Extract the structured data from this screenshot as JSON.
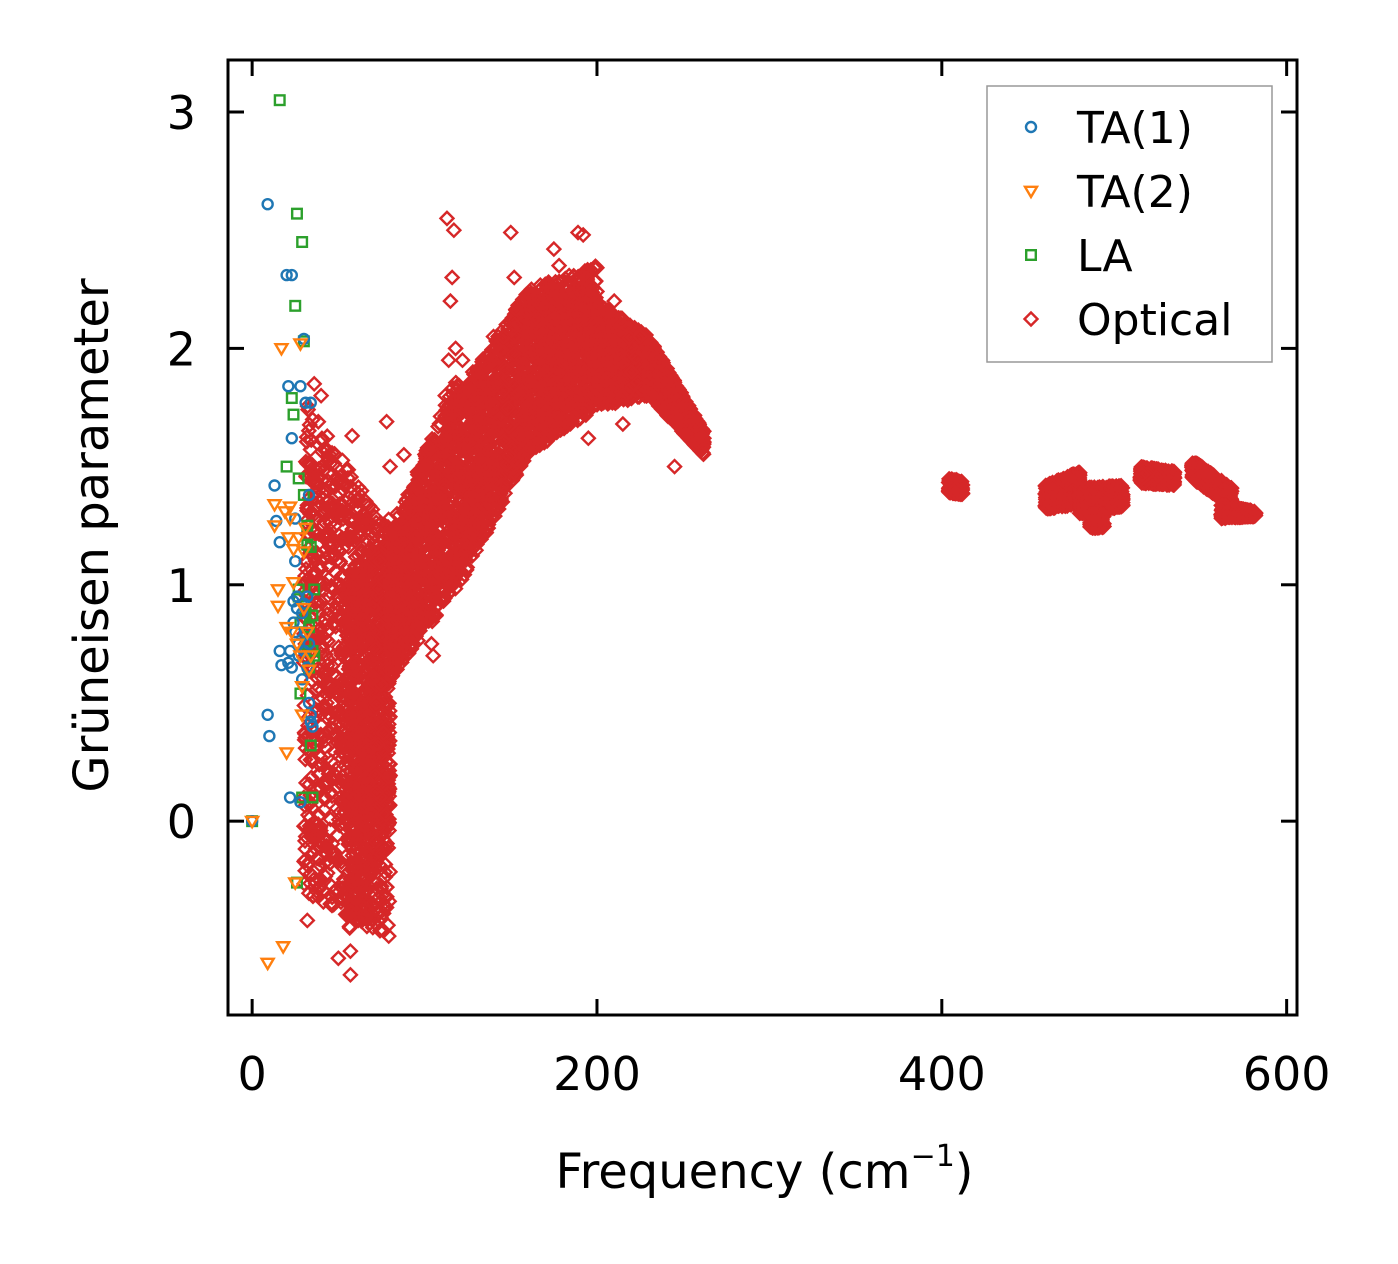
{
  "chart_data": {
    "type": "scatter",
    "title": "",
    "xlabel": "Frequency (cm",
    "xlabel_sup": "−1",
    "xlabel_close": ")",
    "ylabel": "Grüneisen parameter",
    "xlim": [
      -14,
      606
    ],
    "ylim": [
      -0.82,
      3.22
    ],
    "xticks": [
      0,
      200,
      400,
      600
    ],
    "yticks": [
      0,
      1,
      2,
      3
    ],
    "xtick_labels": [
      "0",
      "200",
      "400",
      "600"
    ],
    "ytick_labels": [
      "0",
      "1",
      "2",
      "3"
    ],
    "legend_position": "top-right",
    "series": [
      {
        "name": "TA(1)",
        "marker": "circle",
        "color": "#1f77b4",
        "points": [
          [
            0,
            0
          ],
          [
            9,
            2.61
          ],
          [
            9,
            0.45
          ],
          [
            10,
            0.36
          ],
          [
            13,
            1.42
          ],
          [
            14,
            1.27
          ],
          [
            16,
            0.72
          ],
          [
            16,
            1.18
          ],
          [
            17,
            0.66
          ],
          [
            20,
            2.31
          ],
          [
            21,
            0.67
          ],
          [
            21,
            1.84
          ],
          [
            22,
            0.72
          ],
          [
            22,
            0.1
          ],
          [
            23,
            2.31
          ],
          [
            23,
            1.62
          ],
          [
            23,
            0.65
          ],
          [
            24,
            0.93
          ],
          [
            24,
            0.84
          ],
          [
            25,
            1.28
          ],
          [
            25,
            0.8
          ],
          [
            25,
            1.1
          ],
          [
            26,
            0.95
          ],
          [
            26,
            0.9
          ],
          [
            27,
            0.75
          ],
          [
            27,
            0.7
          ],
          [
            28,
            1.84
          ],
          [
            28,
            0.08
          ],
          [
            29,
            0.88
          ],
          [
            29,
            0.6
          ],
          [
            30,
            2.04
          ],
          [
            30,
            0.92
          ],
          [
            30,
            0.72
          ],
          [
            31,
            1.77
          ],
          [
            31,
            0.8
          ],
          [
            32,
            0.65
          ],
          [
            32,
            0.95
          ],
          [
            33,
            1.38
          ],
          [
            33,
            0.5
          ],
          [
            33,
            0.75
          ],
          [
            34,
            1.77
          ],
          [
            34,
            0.45
          ],
          [
            34,
            0.42
          ],
          [
            35,
            0.4
          ]
        ]
      },
      {
        "name": "TA(2)",
        "marker": "triangle",
        "color": "#ff7f0e",
        "points": [
          [
            0,
            0
          ],
          [
            9,
            -0.6
          ],
          [
            13,
            1.34
          ],
          [
            13,
            1.25
          ],
          [
            15,
            0.98
          ],
          [
            15,
            0.91
          ],
          [
            17,
            2.0
          ],
          [
            18,
            -0.53
          ],
          [
            19,
            1.31
          ],
          [
            20,
            0.82
          ],
          [
            20,
            0.29
          ],
          [
            21,
            1.2
          ],
          [
            22,
            1.28
          ],
          [
            22,
            1.33
          ],
          [
            23,
            0.8
          ],
          [
            24,
            1.15
          ],
          [
            24,
            1.01
          ],
          [
            25,
            -0.26
          ],
          [
            26,
            0.75
          ],
          [
            27,
            1.2
          ],
          [
            28,
            2.02
          ],
          [
            28,
            0.7
          ],
          [
            29,
            0.45
          ],
          [
            29,
            0.57
          ],
          [
            30,
            1.14
          ],
          [
            30,
            0.9
          ],
          [
            31,
            1.24
          ],
          [
            32,
            0.8
          ],
          [
            33,
            0.64
          ],
          [
            34,
            0.7
          ]
        ]
      },
      {
        "name": "LA",
        "marker": "square",
        "color": "#2ca02c",
        "points": [
          [
            0,
            0
          ],
          [
            16,
            3.05
          ],
          [
            20,
            1.5
          ],
          [
            23,
            1.79
          ],
          [
            24,
            1.72
          ],
          [
            25,
            2.18
          ],
          [
            26,
            2.57
          ],
          [
            26,
            -0.26
          ],
          [
            27,
            0.98
          ],
          [
            27,
            0.95
          ],
          [
            27,
            1.45
          ],
          [
            28,
            0.84
          ],
          [
            28,
            0.54
          ],
          [
            29,
            2.45
          ],
          [
            29,
            0.1
          ],
          [
            30,
            2.03
          ],
          [
            30,
            1.38
          ],
          [
            31,
            0.88
          ],
          [
            31,
            0.75
          ],
          [
            32,
            1.17
          ],
          [
            32,
            1.25
          ],
          [
            33,
            0.82
          ],
          [
            33,
            0.65
          ],
          [
            34,
            0.32
          ],
          [
            34,
            1.16
          ],
          [
            35,
            0.72
          ],
          [
            35,
            0.87
          ],
          [
            35,
            0.1
          ],
          [
            36,
            0.98
          ],
          [
            36,
            0.7
          ]
        ]
      },
      {
        "name": "Optical",
        "marker": "diamond",
        "color": "#d62728",
        "points": [
          [
            30,
            0.1
          ],
          [
            32,
            -0.42
          ],
          [
            36,
            1.85
          ],
          [
            40,
            1.8
          ],
          [
            45,
            1.55
          ],
          [
            48,
            1.25
          ],
          [
            50,
            -0.58
          ],
          [
            52,
            0.9
          ],
          [
            55,
            -0.4
          ],
          [
            57,
            -0.55
          ],
          [
            57,
            -0.65
          ],
          [
            58,
            1.63
          ],
          [
            60,
            1.2
          ],
          [
            62,
            0.0
          ],
          [
            64,
            0.85
          ],
          [
            66,
            -0.3
          ],
          [
            68,
            0.3
          ],
          [
            70,
            -0.45
          ],
          [
            72,
            0.5
          ],
          [
            74,
            1.1
          ],
          [
            78,
            1.69
          ],
          [
            80,
            1.5
          ],
          [
            84,
            1.3
          ],
          [
            88,
            1.55
          ],
          [
            90,
            0.9
          ],
          [
            95,
            1.2
          ],
          [
            100,
            1.45
          ],
          [
            104,
            0.75
          ],
          [
            105,
            0.7
          ],
          [
            110,
            1.6
          ],
          [
            112,
            1.8
          ],
          [
            113,
            2.55
          ],
          [
            114,
            1.95
          ],
          [
            115,
            2.2
          ],
          [
            116,
            2.3
          ],
          [
            117,
            2.5
          ],
          [
            118,
            2.0
          ],
          [
            122,
            1.95
          ],
          [
            125,
            1.75
          ],
          [
            128,
            1.9
          ],
          [
            130,
            1.25
          ],
          [
            135,
            1.6
          ],
          [
            140,
            2.05
          ],
          [
            144,
            1.7
          ],
          [
            150,
            2.49
          ],
          [
            152,
            2.3
          ],
          [
            155,
            2.1
          ],
          [
            158,
            1.55
          ],
          [
            162,
            2.25
          ],
          [
            165,
            1.85
          ],
          [
            170,
            2.2
          ],
          [
            175,
            2.42
          ],
          [
            178,
            2.35
          ],
          [
            180,
            1.7
          ],
          [
            185,
            2.0
          ],
          [
            189,
            2.49
          ],
          [
            192,
            2.48
          ],
          [
            195,
            1.62
          ],
          [
            200,
            2.1
          ],
          [
            205,
            1.8
          ],
          [
            210,
            2.2
          ],
          [
            215,
            1.68
          ],
          [
            220,
            1.9
          ],
          [
            225,
            2.05
          ],
          [
            235,
            1.85
          ],
          [
            245,
            1.5
          ],
          [
            255,
            1.7
          ],
          [
            262,
            1.62
          ]
        ],
        "dense_regions": [
          {
            "x": [
              30,
              80
            ],
            "ylo": [
              -0.3,
              -0.5
            ],
            "yhi": [
              1.8,
              1.2
            ]
          },
          {
            "x": [
              55,
              80
            ],
            "ylo": [
              -0.5,
              0.0
            ],
            "yhi": [
              1.0,
              1.3
            ]
          },
          {
            "x": [
              80,
              120
            ],
            "ylo": [
              0.6,
              1.0
            ],
            "yhi": [
              1.2,
              1.9
            ]
          },
          {
            "x": [
              120,
              160
            ],
            "ylo": [
              1.0,
              1.55
            ],
            "yhi": [
              1.8,
              2.25
            ]
          },
          {
            "x": [
              160,
              200
            ],
            "ylo": [
              1.55,
              1.75
            ],
            "yhi": [
              2.25,
              2.35
            ]
          },
          {
            "x": [
              200,
              230
            ],
            "ylo": [
              1.75,
              1.8
            ],
            "yhi": [
              2.2,
              2.05
            ]
          },
          {
            "x": [
              230,
              262
            ],
            "ylo": [
              1.8,
              1.55
            ],
            "yhi": [
              2.05,
              1.65
            ]
          },
          {
            "x": [
              404,
              412
            ],
            "ylo": [
              1.39,
              1.38
            ],
            "yhi": [
              1.45,
              1.44
            ]
          },
          {
            "x": [
              460,
              480
            ],
            "ylo": [
              1.32,
              1.34
            ],
            "yhi": [
              1.42,
              1.48
            ]
          },
          {
            "x": [
              480,
              505
            ],
            "ylo": [
              1.3,
              1.33
            ],
            "yhi": [
              1.41,
              1.42
            ]
          },
          {
            "x": [
              486,
              494
            ],
            "ylo": [
              1.24,
              1.24
            ],
            "yhi": [
              1.3,
              1.3
            ]
          },
          {
            "x": [
              515,
              535
            ],
            "ylo": [
              1.43,
              1.42
            ],
            "yhi": [
              1.5,
              1.48
            ]
          },
          {
            "x": [
              545,
              568
            ],
            "ylo": [
              1.45,
              1.33
            ],
            "yhi": [
              1.53,
              1.41
            ]
          },
          {
            "x": [
              562,
              582
            ],
            "ylo": [
              1.28,
              1.29
            ],
            "yhi": [
              1.34,
              1.31
            ]
          }
        ]
      }
    ]
  }
}
